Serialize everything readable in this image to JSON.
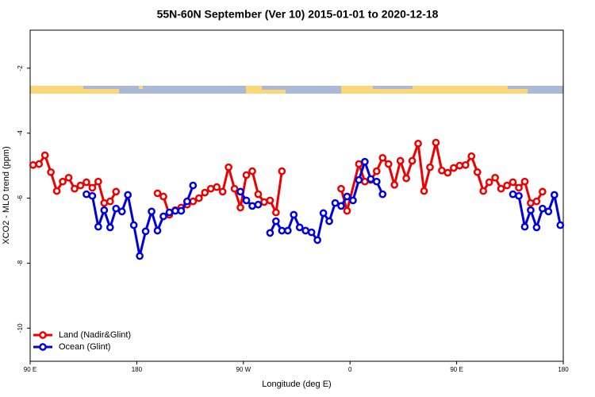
{
  "chart_data": {
    "type": "line",
    "title": "55N-60N September (Ver 10)   2015-01-01 to 2020-12-18",
    "xlabel": "Longitude (deg E)",
    "ylabel": "XCO2 - MLO trend (ppm)",
    "xlim": [
      90,
      540
    ],
    "xticks": [
      {
        "value": 90,
        "label": "90 E"
      },
      {
        "value": 180,
        "label": "180"
      },
      {
        "value": 270,
        "label": "90 W"
      },
      {
        "value": 360,
        "label": "0"
      },
      {
        "value": 450,
        "label": "90 E"
      },
      {
        "value": 540,
        "label": "180"
      }
    ],
    "ylim": [
      -11.02,
      -0.83
    ],
    "yticks": [
      -10,
      -8,
      -6,
      -4,
      -2
    ],
    "legend": "bottom-left",
    "series": [
      {
        "name": "Land (Nadir&Glint)",
        "color": "#ee0000",
        "x": [
          92.5,
          97.5,
          102.5,
          107.5,
          112.5,
          117.5,
          122.5,
          127.5,
          132.5,
          137.5,
          142.5,
          147.5,
          152.5,
          157.5,
          162.5,
          null,
          197.5,
          202.5,
          207.5,
          212.5,
          217.5,
          222.5,
          227.5,
          232.5,
          237.5,
          242.5,
          247.5,
          252.5,
          257.5,
          262.5,
          267.5,
          272.5,
          277.5,
          282.5,
          287.5,
          292.5,
          297.5,
          302.5,
          null,
          352.5,
          357.5,
          367.5,
          372.5,
          377.5,
          382.5,
          387.5,
          392.5,
          397.5,
          402.5,
          407.5,
          412.5,
          417.5,
          422.5,
          427.5,
          432.5,
          437.5,
          442.5,
          447.5,
          452.5,
          457.5,
          462.5,
          467.5,
          472.5,
          477.5,
          482.5,
          487.5,
          492.5,
          497.5,
          502.5,
          507.5,
          512.5,
          517.5,
          522.5
        ],
        "values": [
          -4.98,
          -4.95,
          -4.68,
          -5.2,
          -5.78,
          -5.49,
          -5.37,
          -5.71,
          -5.61,
          -5.51,
          -5.68,
          -5.49,
          -6.15,
          -6.1,
          -5.8,
          null,
          -5.85,
          -5.95,
          -6.51,
          -6.37,
          -6.29,
          -6.2,
          -6.1,
          -6.0,
          -5.83,
          -5.71,
          -5.66,
          -5.8,
          -5.05,
          -5.71,
          -6.29,
          -5.29,
          -5.17,
          -5.88,
          -6.12,
          -6.07,
          -6.44,
          -5.17,
          null,
          -5.71,
          -6.39,
          -4.95,
          -5.49,
          -5.44,
          -5.17,
          -4.76,
          -4.95,
          -5.59,
          -4.85,
          -5.39,
          -4.85,
          -4.32,
          -5.78,
          -5.05,
          -4.29,
          -5.15,
          -5.22,
          -5.07,
          -5.0,
          -4.98,
          -4.71,
          -5.2,
          -5.78,
          -5.51,
          -5.37,
          -5.71,
          -5.61,
          -5.51,
          -5.68,
          -5.49,
          -6.15,
          -6.1,
          -5.8
        ]
      },
      {
        "name": "Ocean (Glint)",
        "color": "#0000dd",
        "x": [
          137.5,
          142.5,
          147.5,
          152.5,
          157.5,
          162.5,
          167.5,
          172.5,
          177.5,
          182.5,
          187.5,
          192.5,
          197.5,
          202.5,
          207.5,
          212.5,
          217.5,
          222.5,
          227.5,
          null,
          267.5,
          272.5,
          277.5,
          282.5,
          null,
          292.5,
          297.5,
          302.5,
          307.5,
          312.5,
          317.5,
          322.5,
          327.5,
          332.5,
          337.5,
          342.5,
          347.5,
          352.5,
          357.5,
          362.5,
          367.5,
          372.5,
          377.5,
          382.5,
          387.5,
          null,
          497.5,
          502.5,
          507.5,
          512.5,
          517.5,
          522.5,
          527.5,
          532.5,
          537.5
        ],
        "values": [
          -5.88,
          -5.93,
          -6.88,
          -6.37,
          -6.9,
          -6.32,
          -6.41,
          -5.9,
          -6.83,
          -7.78,
          -7.02,
          -6.41,
          -7.0,
          -6.56,
          -6.44,
          -6.39,
          -6.39,
          -6.1,
          -5.61,
          null,
          -5.8,
          -6.07,
          -6.24,
          -6.2,
          null,
          -7.07,
          -6.71,
          -7.0,
          -7.0,
          -6.51,
          -6.9,
          -7.0,
          -7.05,
          -7.29,
          -6.46,
          -6.71,
          -6.15,
          -6.24,
          -5.95,
          -6.07,
          -5.44,
          -4.88,
          -5.41,
          -5.49,
          -5.88,
          null,
          -5.88,
          -5.93,
          -6.88,
          -6.37,
          -6.9,
          -6.32,
          -6.41,
          -5.9,
          -6.83
        ]
      }
    ]
  }
}
